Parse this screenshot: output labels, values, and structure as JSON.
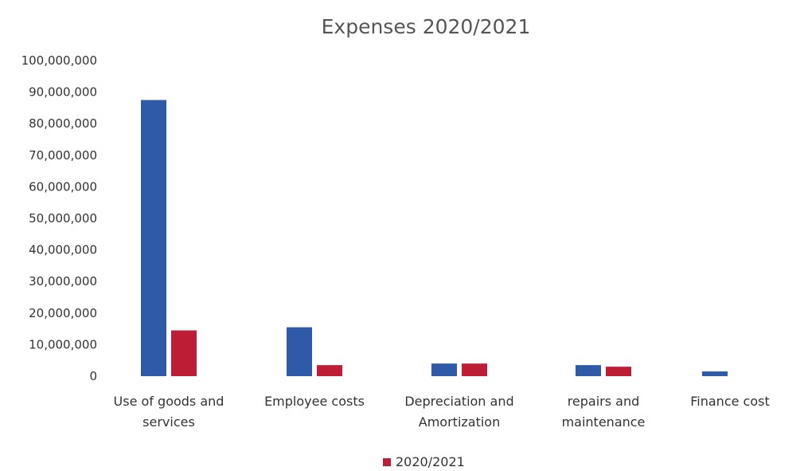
{
  "chart_data": {
    "type": "bar",
    "title": "Expenses 2020/2021",
    "xlabel": "",
    "ylabel": "",
    "ylim": [
      0,
      100000000
    ],
    "yticks": [
      "0",
      "10,000,000",
      "20,000,000",
      "30,000,000",
      "40,000,000",
      "50,000,000",
      "60,000,000",
      "70,000,000",
      "80,000,000",
      "90,000,000",
      "100,000,000"
    ],
    "ytick_values": [
      0,
      10000000,
      20000000,
      30000000,
      40000000,
      50000000,
      60000000,
      70000000,
      80000000,
      90000000,
      100000000
    ],
    "categories": [
      [
        "Use of goods and",
        "services"
      ],
      [
        "Employee costs"
      ],
      [
        "Depreciation and",
        "Amortization"
      ],
      [
        "repairs and",
        "maintenance"
      ],
      [
        "Finance cost"
      ]
    ],
    "series": [
      {
        "name": "",
        "color": "#2e5aa8",
        "values": [
          87500000,
          15500000,
          4000000,
          3500000,
          1500000
        ]
      },
      {
        "name": "2020/2021",
        "color": "#be1e35",
        "values": [
          14500000,
          3500000,
          4000000,
          3000000,
          0
        ]
      }
    ],
    "grid": false,
    "legend": "bottom-center"
  }
}
